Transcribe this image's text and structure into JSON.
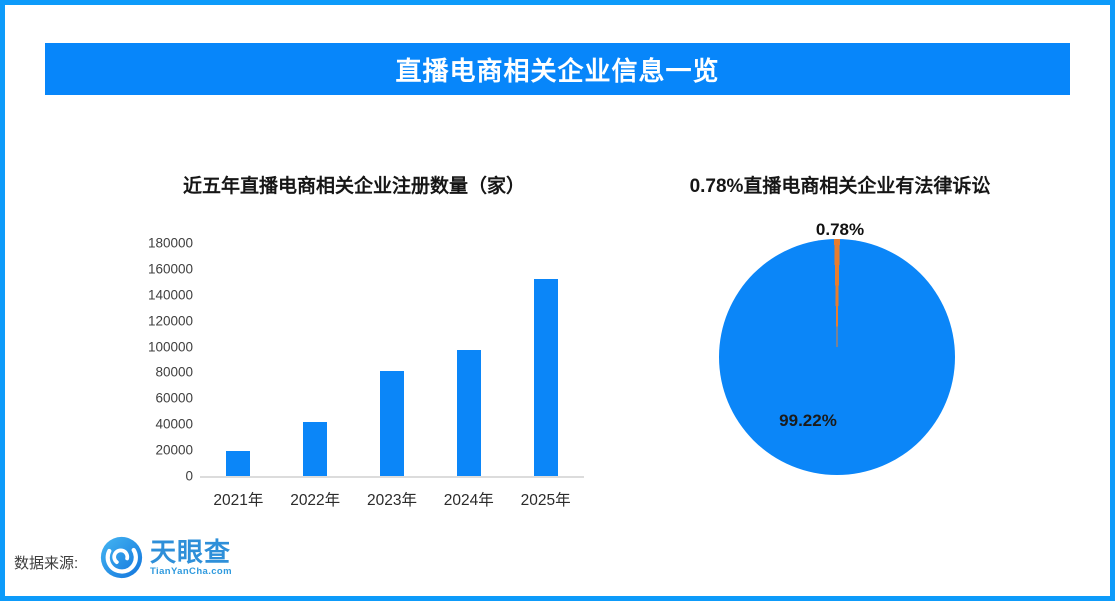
{
  "header": {
    "title": "直播电商相关企业信息一览"
  },
  "footer": {
    "source_label": "数据来源:",
    "logo_name": "天眼查",
    "logo_domain": "TianYanCha.com"
  },
  "colors": {
    "border": "#0d9bfa",
    "banner": "#0786fa",
    "bar": "#0b86f8",
    "pie_main": "#0b86f8",
    "pie_accent": "#e87d2e",
    "axis_line": "#dcdcdc",
    "logo_blue": "#2e8fd9"
  },
  "chart_data": [
    {
      "type": "bar",
      "title": "近五年直播电商相关企业注册数量（家）",
      "categories": [
        "2021年",
        "2022年",
        "2023年",
        "2024年",
        "2025年"
      ],
      "values": [
        19000,
        42000,
        81000,
        97000,
        152000
      ],
      "xlabel": "",
      "ylabel": "",
      "ylim": [
        0,
        180000
      ],
      "ytick_step": 20000,
      "grid": false,
      "legend": "none",
      "bar_color": "#0b86f8"
    },
    {
      "type": "pie",
      "title": "0.78%直播电商相关企业有法律诉讼",
      "slices": [
        {
          "label": "0.78%",
          "value": 0.78,
          "color": "#e87d2e"
        },
        {
          "label": "99.22%",
          "value": 99.22,
          "color": "#0b86f8"
        }
      ],
      "start": "top-centered",
      "legend": "none"
    }
  ]
}
